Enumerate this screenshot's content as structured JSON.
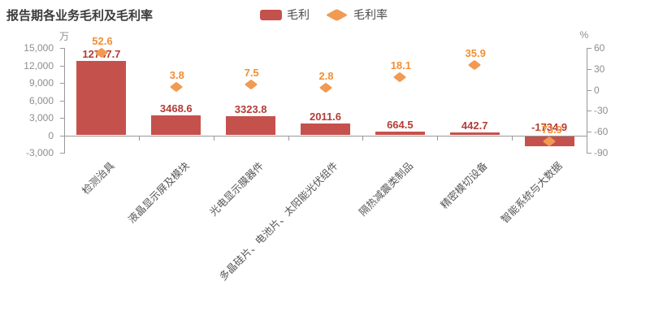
{
  "title": "报告期各业务毛利及毛利率",
  "legend": [
    {
      "label": "毛利",
      "swatch": "bar"
    },
    {
      "label": "毛利率",
      "swatch": "diamond"
    }
  ],
  "chart_data": {
    "type": "bar",
    "title": "报告期各业务毛利及毛利率",
    "categories": [
      "检测治具",
      "液晶显示屏及模块",
      "光电显示膜器件",
      "多晶硅片、电池片、太阳能光伏组件",
      "隔热减震类制品",
      "精密模切设备",
      "智能系统与大数据"
    ],
    "series": [
      {
        "name": "毛利",
        "type": "bar",
        "axis": "left",
        "unit": "万",
        "values": [
          12747.7,
          3468.6,
          3323.8,
          2011.6,
          664.5,
          442.7,
          -1734.9
        ],
        "labels": [
          "12747.7",
          "3468.6",
          "3323.8",
          "2011.6",
          "664.5",
          "442.7",
          "-1734.9"
        ]
      },
      {
        "name": "毛利率",
        "type": "scatter",
        "axis": "right",
        "unit": "%",
        "values": [
          52.6,
          3.8,
          7.5,
          2.8,
          18.1,
          35.9,
          -73.9
        ],
        "labels": [
          "52.6",
          "3.8",
          "7.5",
          "2.8",
          "18.1",
          "35.9",
          "-73.9"
        ]
      }
    ],
    "left_axis": {
      "unit": "万",
      "min": -3000,
      "max": 15000,
      "tick_labels": [
        "15,000",
        "12,000",
        "9,000",
        "6,000",
        "3,000",
        "0",
        "-3,000"
      ]
    },
    "right_axis": {
      "unit": "%",
      "min": -90,
      "max": 60,
      "tick_labels": [
        "60",
        "30",
        "0",
        "-30",
        "-60",
        "-90"
      ]
    },
    "grid_lines": false,
    "legend_position": "top-center",
    "colors": {
      "bar": "#c5514d",
      "bar_label": "#b43c37",
      "diamond": "#f19a52",
      "rate_label": "#f28f33",
      "axis": "#999999",
      "tick_label": "#8e8e8e",
      "category_label": "#555555",
      "title": "#3b3b3b",
      "legend_text": "#4a4a4a"
    }
  }
}
